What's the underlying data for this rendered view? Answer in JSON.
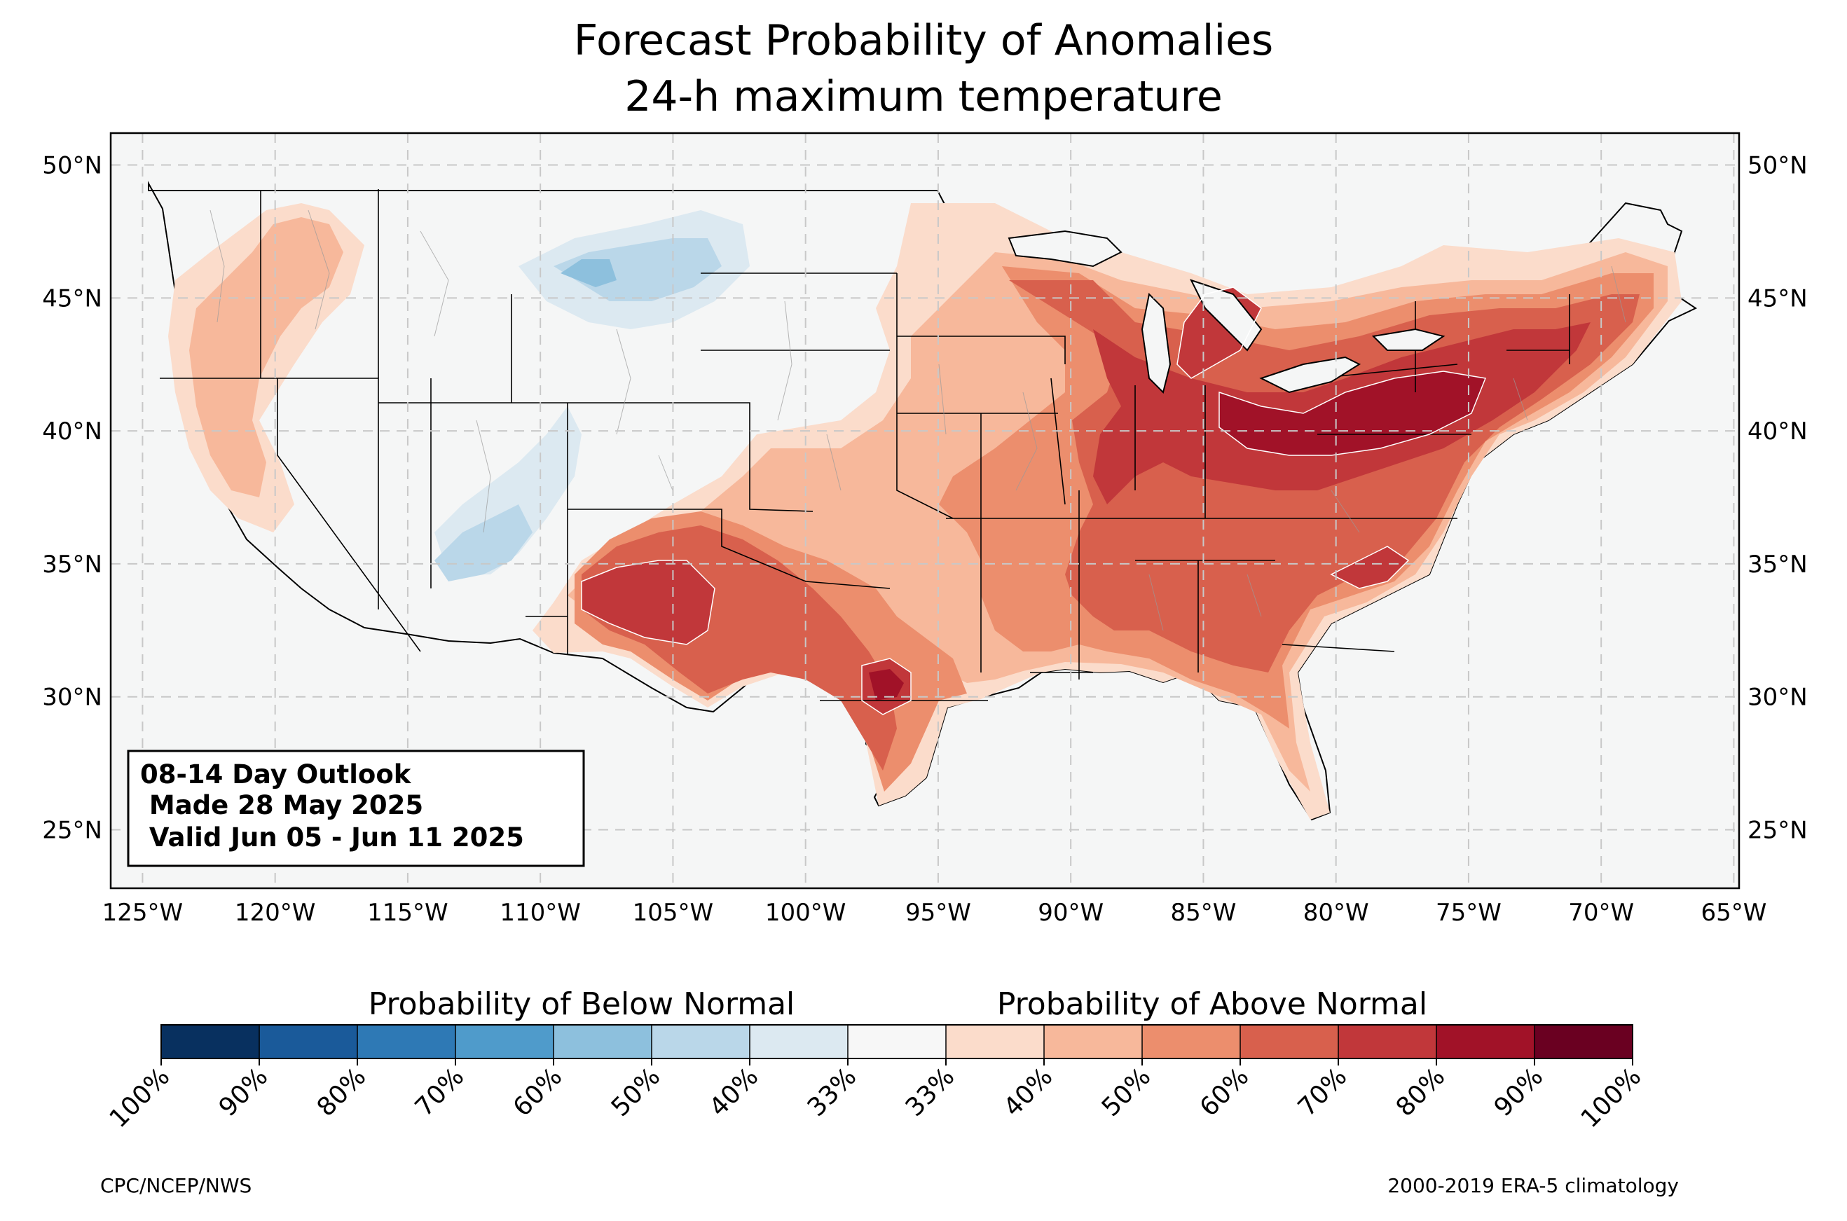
{
  "title": [
    "Forecast Probability of Anomalies",
    "24-h maximum temperature"
  ],
  "map": {
    "lon_labels": [
      "125°W",
      "120°W",
      "115°W",
      "110°W",
      "105°W",
      "100°W",
      "95°W",
      "90°W",
      "85°W",
      "80°W",
      "75°W",
      "70°W",
      "65°W"
    ],
    "lat_labels": [
      "50°N",
      "45°N",
      "40°N",
      "35°N",
      "30°N",
      "25°N"
    ],
    "lon_range": [
      -126.2,
      -64.8
    ],
    "lat_range": [
      22.8,
      51.2
    ],
    "ocean_color": "#f5f6f6",
    "grid": "dashed"
  },
  "infobox": {
    "lines": [
      "08-14 Day Outlook",
      " Made 28 May 2025",
      " Valid Jun 05 - Jun 11 2025"
    ]
  },
  "colorbar": {
    "below_title": "Probability of Below Normal",
    "above_title": "Probability of Above Normal",
    "tick_labels": [
      "100%",
      "90%",
      "80%",
      "70%",
      "60%",
      "50%",
      "40%",
      "33%",
      "33%",
      "40%",
      "50%",
      "60%",
      "70%",
      "80%",
      "90%",
      "100%"
    ],
    "colors": [
      "#08305f",
      "#1a5a9a",
      "#2e79b5",
      "#4f9bcb",
      "#8dc0dd",
      "#bad7e9",
      "#dce9f1",
      "#f7f7f7",
      "#fbdccb",
      "#f7b89b",
      "#ec8e6d",
      "#d8604d",
      "#c1373a",
      "#a11228",
      "#6a0021"
    ]
  },
  "footer": {
    "left": "CPC/NCEP/NWS",
    "right": "2000-2019 ERA-5 climatology"
  }
}
